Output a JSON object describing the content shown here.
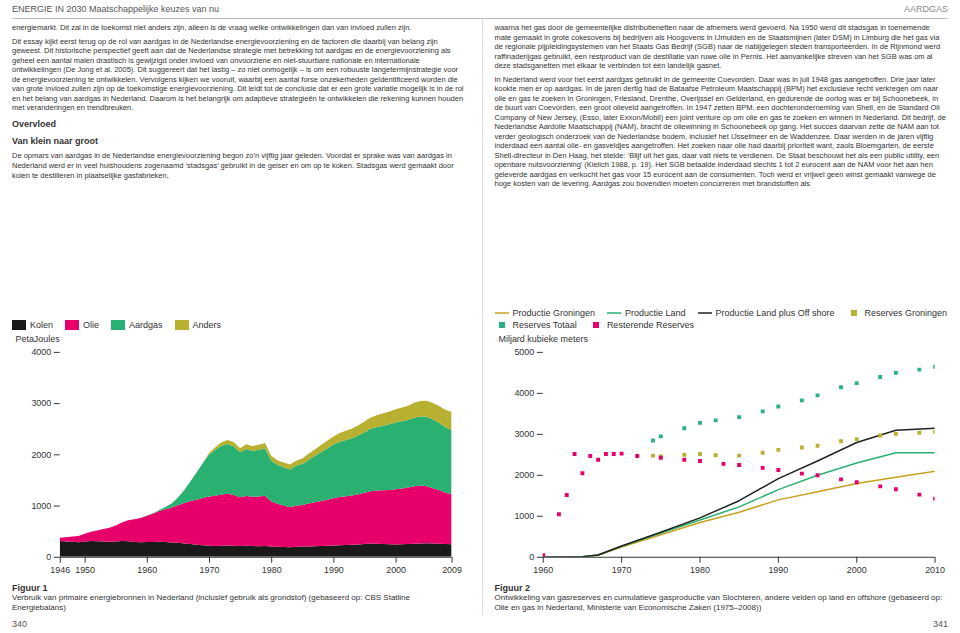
{
  "chart_data": [
    {
      "type": "area",
      "stacked": true,
      "title": "Figuur 1",
      "subtitle": "Verbruik van primaire energiebronnen in Nederland (inclusief gebruik als grondstof) (gebaseerd op: CBS Statline Energiebalans)",
      "y_label": "PetaJoules",
      "x": [
        1946,
        1947,
        1948,
        1949,
        1950,
        1951,
        1952,
        1953,
        1954,
        1955,
        1956,
        1957,
        1958,
        1959,
        1960,
        1961,
        1962,
        1963,
        1964,
        1965,
        1966,
        1967,
        1968,
        1969,
        1970,
        1971,
        1972,
        1973,
        1974,
        1975,
        1976,
        1977,
        1978,
        1979,
        1980,
        1981,
        1982,
        1983,
        1984,
        1985,
        1986,
        1987,
        1988,
        1989,
        1990,
        1991,
        1992,
        1993,
        1994,
        1995,
        1996,
        1997,
        1998,
        1999,
        2000,
        2001,
        2002,
        2003,
        2004,
        2005,
        2006,
        2007,
        2008,
        2009
      ],
      "series": [
        {
          "name": "Kolen",
          "color": "#1a1a1a",
          "values": [
            310,
            300,
            295,
            285,
            300,
            310,
            305,
            300,
            295,
            300,
            310,
            305,
            290,
            285,
            290,
            290,
            295,
            290,
            280,
            275,
            260,
            250,
            235,
            225,
            215,
            210,
            215,
            220,
            215,
            210,
            215,
            210,
            205,
            210,
            200,
            195,
            190,
            185,
            195,
            200,
            200,
            205,
            210,
            215,
            220,
            225,
            230,
            235,
            240,
            250,
            260,
            255,
            250,
            245,
            240,
            245,
            250,
            255,
            260,
            265,
            260,
            255,
            250,
            245
          ]
        },
        {
          "name": "Olie",
          "color": "#e8006a",
          "values": [
            60,
            80,
            100,
            120,
            150,
            180,
            210,
            240,
            270,
            310,
            360,
            410,
            440,
            470,
            510,
            550,
            600,
            640,
            680,
            730,
            790,
            840,
            880,
            920,
            960,
            980,
            1000,
            1010,
            990,
            950,
            970,
            960,
            970,
            980,
            880,
            840,
            810,
            780,
            800,
            810,
            840,
            860,
            880,
            900,
            920,
            940,
            950,
            960,
            980,
            1000,
            1020,
            1040,
            1050,
            1060,
            1080,
            1090,
            1100,
            1120,
            1130,
            1110,
            1080,
            1050,
            1000,
            980
          ]
        },
        {
          "name": "Aardgas",
          "color": "#2ab070",
          "values": [
            0,
            0,
            0,
            0,
            0,
            0,
            0,
            0,
            0,
            0,
            0,
            0,
            0,
            0,
            5,
            10,
            20,
            40,
            80,
            150,
            250,
            380,
            530,
            680,
            820,
            900,
            950,
            970,
            950,
            880,
            920,
            900,
            910,
            930,
            800,
            760,
            750,
            740,
            780,
            800,
            850,
            900,
            950,
            1000,
            1050,
            1080,
            1100,
            1120,
            1150,
            1180,
            1220,
            1240,
            1260,
            1280,
            1300,
            1310,
            1320,
            1340,
            1350,
            1360,
            1340,
            1310,
            1280,
            1250
          ]
        },
        {
          "name": "Anders",
          "color": "#b8b030",
          "values": [
            0,
            0,
            0,
            0,
            0,
            0,
            0,
            0,
            0,
            0,
            0,
            0,
            0,
            0,
            0,
            0,
            0,
            0,
            0,
            0,
            0,
            0,
            0,
            0,
            30,
            50,
            70,
            80,
            80,
            80,
            90,
            90,
            100,
            100,
            90,
            90,
            90,
            95,
            100,
            110,
            120,
            130,
            140,
            150,
            160,
            170,
            180,
            190,
            200,
            210,
            220,
            230,
            240,
            250,
            260,
            270,
            280,
            290,
            300,
            310,
            320,
            330,
            340,
            350
          ]
        }
      ],
      "xlim": [
        1946,
        2009
      ],
      "xticks": [
        1946,
        1950,
        1960,
        1970,
        1980,
        1990,
        2000,
        2009
      ],
      "ylim": [
        0,
        4000
      ],
      "yticks": [
        0,
        1000,
        2000,
        3000,
        4000
      ],
      "grid": false,
      "legend": "upper left",
      "annotations": [
        "ENERGIE IN 2030  Maatschappelijke keuzes van nu",
        "340",
        "energiemarkt. Dit zal in de toekomst niet anders zijn, alleen is de vraag welke ontwikkelingen dan van invloed zullen zijn.",
        "Dit essay kijkt eerst terug op de rol van aardgas in de Nederlandse energievoorziening en de factoren die daarbij van belang zijn geweest. Dit historische perspectief geeft aan dat de Nederlandse strategie met betrekking tot aardgas en de energievoorziening als geheel een aantal malen drastisch is gewijzigd onder invloed van onvoorziene en niet-stuurbare nationale en internationale ontwikkelingen (De Jong et al. 2005). Dit suggereert dat het lastig – zo niet onmogelijk – is om een robuuste langetermijnstrategie voor de energievoorziening te ontwikkelen. Vervolgens kijken we vooruit, waarbij een aantal forse onzekerheden geïdentificeerd worden die van grote invloed zullen zijn op de toekomstige energievoorziening. Dit leidt tot de conclusie dat er een grote variatie mogelijk is in de rol en het belang van aardgas in Nederland. Daarom is het belangrijk om adaptieve strategieën te ontwikkelen die rekening kunnen houden met veranderingen en trendbreuken.",
        "Overvloed",
        "Van klein naar groot",
        "De opmars van aardgas in de Nederlandse energievoorziening begon zo’n vijftig jaar geleden. Voordat er sprake was van aardgas in Nederland werd er in veel huishoudens zogenaamd ‘stadsgas’ gebruikt in de geiser en om op te koken. Stadsgas werd gemaakt door kolen te destilleren in plaatselijke gasfabrieken,"
      ]
    },
    {
      "type": "line",
      "title": "Figuur 2",
      "subtitle": "Ontwikkeling van gasreserves en cumulatieve gasproductie van Slochteren, andere velden op land en offshore (gebaseerd op: Olie en gas in Nederland, Ministerie van Economische Zaken (1975–2008))",
      "y_label": "Miljard kubieke meters",
      "series": [
        {
          "name": "Productie Groningen",
          "type": "line",
          "color": "#c8a020",
          "x": [
            1960,
            1963,
            1965,
            1967,
            1970,
            1975,
            1980,
            1985,
            1990,
            1995,
            2000,
            2005,
            2010
          ],
          "values": [
            0,
            5,
            15,
            50,
            250,
            550,
            850,
            1100,
            1400,
            1600,
            1800,
            1950,
            2100
          ]
        },
        {
          "name": "Productie Land",
          "type": "line",
          "color": "#2ab070",
          "x": [
            1960,
            1963,
            1965,
            1967,
            1970,
            1975,
            1980,
            1985,
            1990,
            1995,
            2000,
            2005,
            2010
          ],
          "values": [
            0,
            5,
            15,
            55,
            270,
            590,
            910,
            1230,
            1650,
            2000,
            2300,
            2550,
            2550
          ]
        },
        {
          "name": "Productie Land plus Off shore",
          "type": "line",
          "color": "#222222",
          "x": [
            1960,
            1963,
            1965,
            1967,
            1970,
            1975,
            1980,
            1985,
            1990,
            1995,
            2000,
            2005,
            2010
          ],
          "values": [
            0,
            5,
            15,
            55,
            275,
            610,
            960,
            1380,
            1920,
            2350,
            2800,
            3100,
            3150
          ]
        },
        {
          "name": "Reserves Groningen",
          "type": "scatter",
          "marker": "square",
          "color": "#b8b030",
          "x": [
            1974,
            1975,
            1978,
            1980,
            1982,
            1985,
            1988,
            1990,
            1993,
            1995,
            1998,
            2000,
            2003,
            2005,
            2008,
            2010
          ],
          "values": [
            2480,
            2460,
            2500,
            2520,
            2490,
            2480,
            2550,
            2620,
            2680,
            2720,
            2830,
            2880,
            2970,
            3010,
            3040,
            3060
          ]
        },
        {
          "name": "Reserves Totaal",
          "type": "scatter",
          "marker": "square",
          "color": "#2ab088",
          "x": [
            1974,
            1975,
            1978,
            1980,
            1982,
            1985,
            1988,
            1990,
            1993,
            1995,
            1998,
            2000,
            2003,
            2005,
            2008,
            2010
          ],
          "values": [
            2850,
            2950,
            3150,
            3280,
            3340,
            3420,
            3560,
            3680,
            3830,
            3950,
            4150,
            4250,
            4400,
            4500,
            4580,
            4650
          ]
        },
        {
          "name": "Resterende Reserves",
          "type": "scatter",
          "marker": "square",
          "color": "#e8006a",
          "x": [
            1960,
            1962,
            1963,
            1964,
            1965,
            1966,
            1967,
            1968,
            1969,
            1970,
            1972,
            1975,
            1978,
            1980,
            1983,
            1985,
            1988,
            1990,
            1993,
            1995,
            1998,
            2000,
            2003,
            2005,
            2008,
            2010
          ],
          "values": [
            50,
            1050,
            1520,
            2520,
            2050,
            2470,
            2380,
            2520,
            2520,
            2530,
            2470,
            2430,
            2380,
            2350,
            2280,
            2250,
            2180,
            2130,
            2040,
            2000,
            1900,
            1830,
            1730,
            1660,
            1530,
            1430
          ]
        }
      ],
      "xlim": [
        1960,
        2010
      ],
      "xticks": [
        1960,
        1970,
        1980,
        1990,
        2000,
        2010
      ],
      "ylim": [
        0,
        5000
      ],
      "yticks": [
        0,
        1000,
        2000,
        3000,
        4000,
        5000
      ],
      "grid": false,
      "legend": "upper left",
      "annotations": [
        "AARDGAS",
        "341",
        "waarna het gas door de gemeentelijke distributienetten naar de afnemers werd gevoerd. Na 1950 werd dit stadsgas in toenemende mate gemaakt in grote cokesovens bij bedrijven als Hoogovens in IJmuiden en de Staatsmijnen (later DSM) in Limburg die het gas via de regionale pijpleidingsystemen van het Staats Gas Bedrijf (SGB) naar de nabijgelegen steden transporteerden. In de Rijnmond werd raffinaderijgas gebruikt, een restproduct van de destillatie van ruwe olie in Pernis. Het aanvankelijke streven van het SGB was om al deze stadsganetten met elkaar te verbinden tot één landelijk gasnet.",
        "In Nederland werd voor het eerst aardgas gebruikt in de gemeente Coevorden. Daar was in juli 1948 gas aangetroffen. Drie jaar later kookte men er op aardgas. In de jaren dertig had de Bataafse Petroleum Maatschappij (BPM) het exclusieve recht verkregen om naar olie en gas te zoeken in Groningen, Friesland, Drenthe, Overijssel en Gelderland, en gedurende de oorlog was er bij Schoonebeek, in de buurt van Coevorden, een groot olieveld aangetroffen. In 1947 zetten BPM, een dochteronderneming van Shell, en de Standard Oil Company of New Jersey, (Esso, later Exxon/Mobil) een joint venture op om olie en gas te zoeken en winnen in Nederland. Dit bedrijf, de Nederlandse Aardolie Maatschappij (NAM), bracht de oliewinning in Schoonebeek op gang. Het succes daarvan zette de NAM aan tot verder geologisch onderzoek van de Nederlandse bodem, inclusief het IJsselmeer en de Waddenzee. Daar werden in de jaren vijftig inderdaad een aantal olie- en gasveldjes aangetroffen. Het zoeken naar olie had daarbij prioriteit want, zaols Bloemgarten, de eerste Shell-directeur in Den Haag, het stelde: ‘Blijf uit het gas, daar valt niets te verdienen. De Staat beschouwt het als een public utility, een openbare nutsvoorziening’ (Kielich 1988, p. 19). Het SGB betaalde inderdaad slechts 1 tot 2 eurocent aan de NAM voor het aan hen geleverde aardgas en verkocht het gas voor 15 eurocent aan de consumenten. Toch werd er vrijwel geen winst gemaakt vanwege de hoge kosten van de levering. Aardgas zou bovendien moeten concurreren met brandstoffen als"
      ]
    }
  ]
}
